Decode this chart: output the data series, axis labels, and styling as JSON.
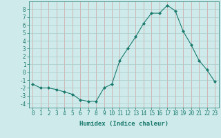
{
  "x": [
    0,
    1,
    2,
    3,
    4,
    5,
    6,
    7,
    8,
    9,
    10,
    11,
    12,
    13,
    14,
    15,
    16,
    17,
    18,
    19,
    20,
    21,
    22,
    23
  ],
  "y": [
    -1.5,
    -2.0,
    -2.0,
    -2.2,
    -2.5,
    -2.8,
    -3.5,
    -3.7,
    -3.7,
    -2.0,
    -1.5,
    1.5,
    3.0,
    4.5,
    6.2,
    7.5,
    7.5,
    8.5,
    7.8,
    5.2,
    3.5,
    1.5,
    0.3,
    -1.2
  ],
  "line_color": "#1a7a6e",
  "marker": "D",
  "marker_size": 2,
  "bg_color": "#ceeaea",
  "grid_color": "#b8d8d5",
  "tick_color": "#1a7a6e",
  "xlabel": "Humidex (Indice chaleur)",
  "xlim": [
    -0.5,
    23.5
  ],
  "ylim": [
    -4.5,
    9.0
  ],
  "yticks": [
    -4,
    -3,
    -2,
    -1,
    0,
    1,
    2,
    3,
    4,
    5,
    6,
    7,
    8
  ],
  "xticks": [
    0,
    1,
    2,
    3,
    4,
    5,
    6,
    7,
    8,
    9,
    10,
    11,
    12,
    13,
    14,
    15,
    16,
    17,
    18,
    19,
    20,
    21,
    22,
    23
  ],
  "label_fontsize": 6.5,
  "tick_fontsize": 5.5,
  "grid_major_color": "#c8a0a0",
  "grid_minor_color": "#b8d8d5"
}
